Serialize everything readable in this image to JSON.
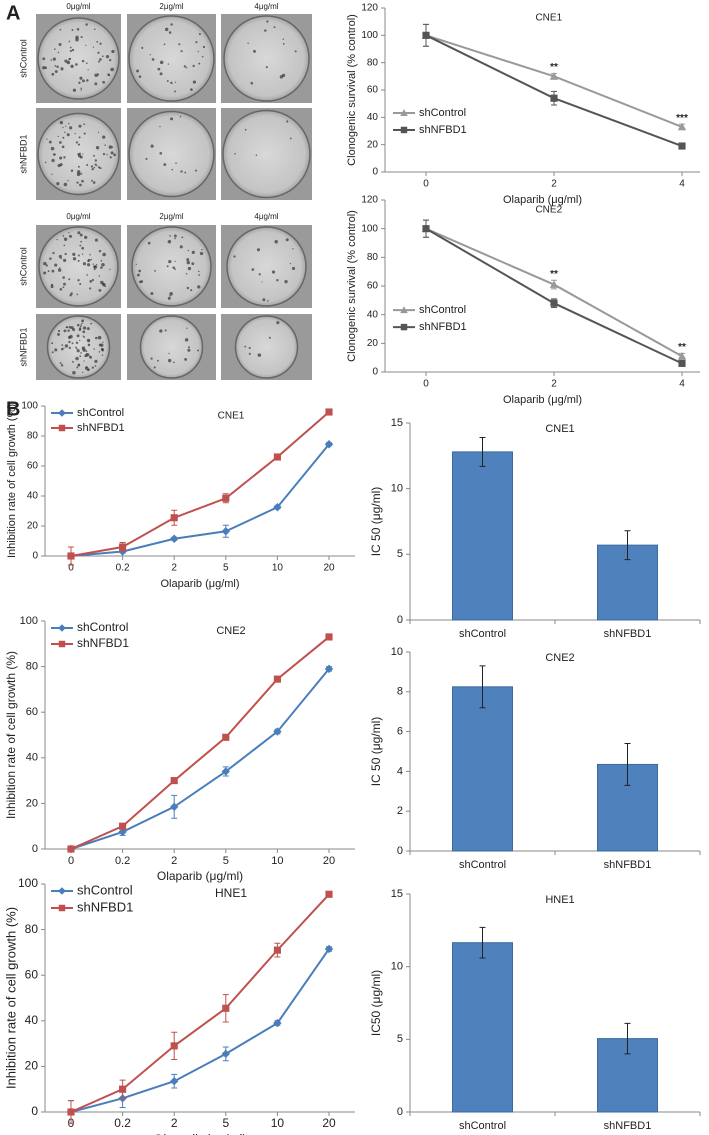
{
  "panels": [
    "A",
    "B"
  ],
  "plates": [
    {
      "concentrations": [
        "0μg/ml",
        "2μg/ml",
        "4μg/ml"
      ],
      "rows": [
        "shControl",
        "shNFBD1"
      ]
    },
    {
      "concentrations": [
        "0μg/ml",
        "2μg/ml",
        "4μg/ml"
      ],
      "rows": [
        "shControl",
        "shNFBD1"
      ]
    }
  ],
  "chart_data": [
    {
      "type": "line",
      "title": "CNE1",
      "x_label": "Olaparib (μg/ml)",
      "y_label": "Clonogenic survival (% control)",
      "categories": [
        "0",
        "2",
        "4"
      ],
      "ylim": [
        0,
        120
      ],
      "yticks": [
        0,
        20,
        40,
        60,
        80,
        100,
        120
      ],
      "legend": "left",
      "significance": [
        null,
        "**",
        "***"
      ],
      "series": [
        {
          "name": "shControl",
          "color": "#999999",
          "marker": "triangle",
          "values": [
            100,
            70,
            33
          ],
          "errors": [
            8,
            2,
            2
          ]
        },
        {
          "name": "shNFBD1",
          "color": "#555555",
          "marker": "square",
          "values": [
            100,
            54,
            19
          ],
          "errors": [
            8,
            5,
            1
          ]
        }
      ]
    },
    {
      "type": "line",
      "title": "CNE2",
      "x_label": "Olaparib (μg/ml)",
      "y_label": "Clonogenic survival (% control)",
      "categories": [
        "0",
        "2",
        "4"
      ],
      "ylim": [
        0,
        120
      ],
      "yticks": [
        0,
        20,
        40,
        60,
        80,
        100,
        120
      ],
      "legend": "left",
      "significance": [
        null,
        "**",
        "**"
      ],
      "series": [
        {
          "name": "shControl",
          "color": "#999999",
          "marker": "triangle",
          "values": [
            100,
            61,
            11
          ],
          "errors": [
            6,
            3,
            2
          ]
        },
        {
          "name": "shNFBD1",
          "color": "#555555",
          "marker": "square",
          "values": [
            100,
            48,
            6
          ],
          "errors": [
            6,
            3,
            1
          ]
        }
      ]
    },
    {
      "type": "line",
      "title": "CNE1",
      "x_label": "Olaparib (μg/ml)",
      "y_label": "Inhibition rate of cell growth (%)",
      "categories": [
        "0",
        "0.2",
        "2",
        "5",
        "10",
        "20"
      ],
      "ylim": [
        0,
        100
      ],
      "yticks": [
        0,
        20,
        40,
        60,
        80,
        100
      ],
      "legend": "upper left",
      "series": [
        {
          "name": "shControl",
          "color": "#4a7ebb",
          "marker": "diamond",
          "values": [
            0,
            3,
            11.5,
            16.5,
            32.5,
            74.5
          ],
          "errors": [
            6,
            1,
            1,
            4,
            1,
            1
          ]
        },
        {
          "name": "shNFBD1",
          "color": "#c0504d",
          "marker": "square",
          "values": [
            0,
            6,
            25.5,
            38.5,
            66,
            96
          ],
          "errors": [
            6,
            3,
            5,
            3,
            1,
            1
          ]
        }
      ]
    },
    {
      "type": "bar",
      "title": "CNE1",
      "y_label": "IC 50 (μg/ml)",
      "categories": [
        "shControl",
        "shNFBD1"
      ],
      "values": [
        12.8,
        5.7
      ],
      "errors": [
        1.1,
        1.1
      ],
      "color": "#4f81bd",
      "ylim": [
        0,
        15
      ],
      "yticks": [
        0,
        5,
        10,
        15
      ]
    },
    {
      "type": "line",
      "title": "CNE2",
      "x_label": "Olaparib (μg/ml)",
      "y_label": "Inhibition rate of cell growth  (%)",
      "categories": [
        "0",
        "0.2",
        "2",
        "5",
        "10",
        "20"
      ],
      "ylim": [
        0,
        100
      ],
      "yticks": [
        0,
        20,
        40,
        60,
        80,
        100
      ],
      "legend": "upper left",
      "series": [
        {
          "name": "shControl",
          "color": "#4a7ebb",
          "marker": "diamond",
          "values": [
            0,
            7.5,
            18.5,
            34,
            51.5,
            79
          ],
          "errors": [
            1,
            1.5,
            5,
            2,
            1,
            1
          ]
        },
        {
          "name": "shNFBD1",
          "color": "#c0504d",
          "marker": "square",
          "values": [
            0,
            10,
            30,
            49,
            74.5,
            93
          ],
          "errors": [
            1,
            1,
            1,
            1,
            1,
            1
          ]
        }
      ]
    },
    {
      "type": "bar",
      "title": "CNE2",
      "y_label": "IC 50 (μg/ml)",
      "categories": [
        "shControl",
        "shNFBD1"
      ],
      "values": [
        8.25,
        4.35
      ],
      "errors": [
        1.05,
        1.05
      ],
      "color": "#4f81bd",
      "ylim": [
        0,
        10
      ],
      "yticks": [
        0,
        2,
        4,
        6,
        8,
        10
      ]
    },
    {
      "type": "line",
      "title": "HNE1",
      "x_label": "Olaparib (μg/ml)",
      "y_label": "Inhibition rate of cell growth (%)",
      "categories": [
        "0",
        "0.2",
        "2",
        "5",
        "10",
        "20"
      ],
      "ylim": [
        0,
        100
      ],
      "yticks": [
        0,
        20,
        40,
        60,
        80,
        100
      ],
      "legend": "upper left",
      "series": [
        {
          "name": "shControl",
          "color": "#4a7ebb",
          "marker": "diamond",
          "values": [
            0,
            6,
            13.5,
            25.5,
            39,
            71.5
          ],
          "errors": [
            5,
            4,
            3,
            3,
            1,
            1
          ]
        },
        {
          "name": "shNFBD1",
          "color": "#c0504d",
          "marker": "square",
          "values": [
            0,
            10,
            29,
            45.5,
            71,
            95.5
          ],
          "errors": [
            5,
            4,
            6,
            6,
            3,
            1
          ]
        }
      ]
    },
    {
      "type": "bar",
      "title": "HNE1",
      "y_label": "IC50 (μg/ml)",
      "categories": [
        "shControl",
        "shNFBD1"
      ],
      "values": [
        11.65,
        5.05
      ],
      "errors": [
        1.05,
        1.05
      ],
      "color": "#4f81bd",
      "ylim": [
        0,
        15
      ],
      "yticks": [
        0,
        5,
        10,
        15
      ]
    }
  ]
}
